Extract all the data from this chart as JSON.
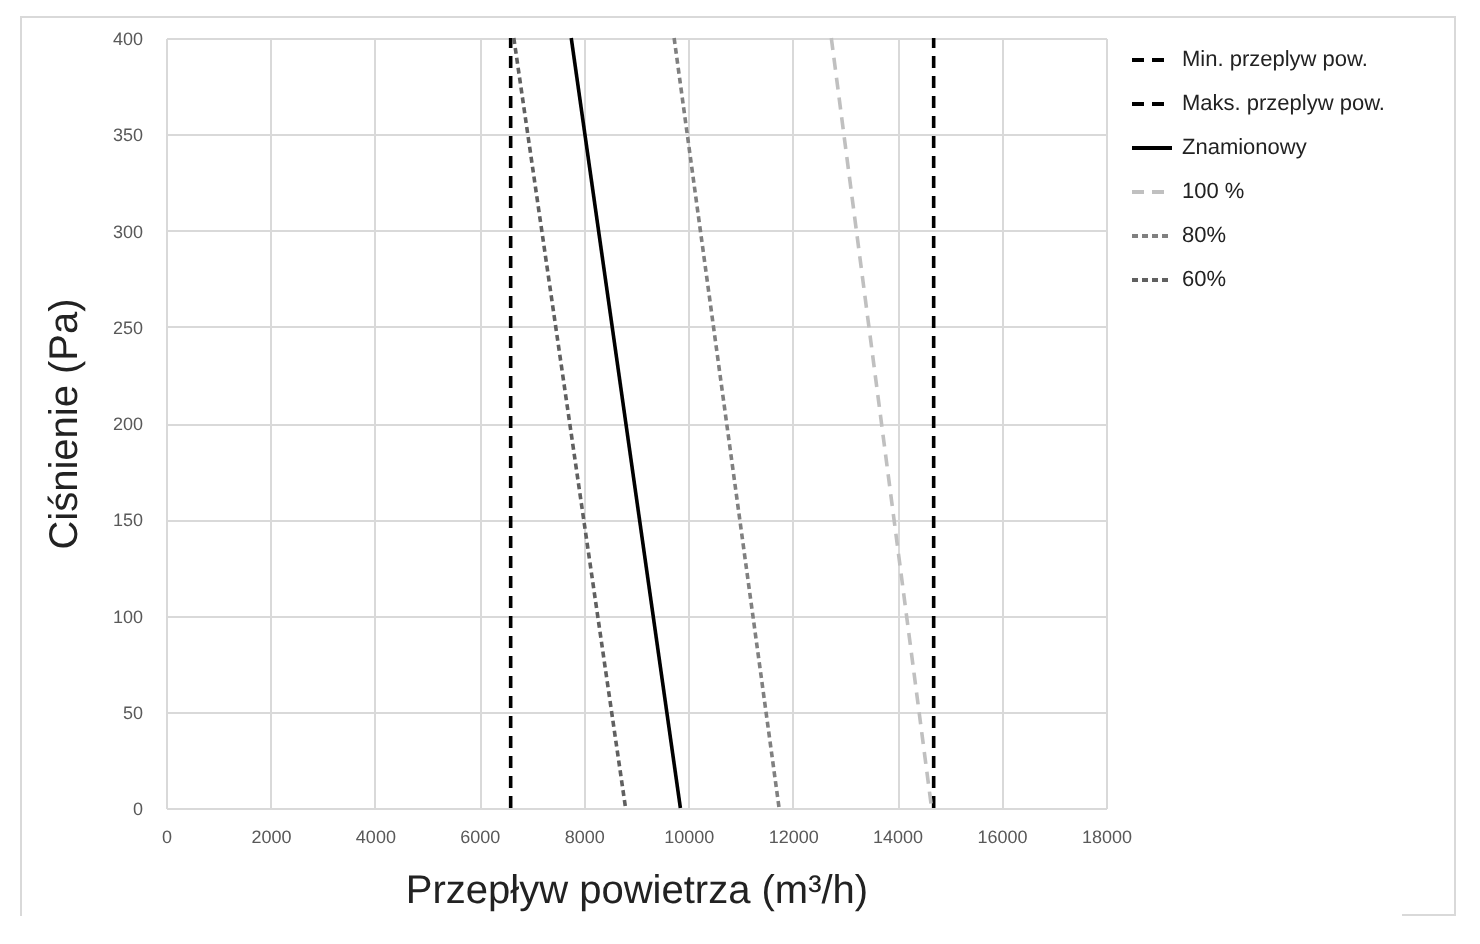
{
  "chart_data": {
    "type": "line",
    "xlabel": "Przepływ powietrza (m³/h)",
    "ylabel": "Ciśnienie (Pa)",
    "xlim": [
      0,
      18000
    ],
    "xticks": [
      0,
      2000,
      4000,
      6000,
      8000,
      10000,
      12000,
      14000,
      16000,
      18000
    ],
    "ylim": [
      0,
      400
    ],
    "yticks": [
      0,
      50,
      100,
      150,
      200,
      250,
      300,
      350,
      400
    ],
    "grid": true,
    "legend": "top right",
    "marker": "none",
    "series": [
      {
        "name": "Min. przeplyw pow.",
        "color": "#000000",
        "line_style": "dashed",
        "x": [
          6600,
          6600
        ],
        "values": [
          0,
          400
        ]
      },
      {
        "name": "Maks. przeplyw pow.",
        "color": "#000000",
        "line_style": "dashed",
        "x": [
          14700,
          14700
        ],
        "values": [
          0,
          400
        ]
      },
      {
        "name": "Znamionowy",
        "color": "#000000",
        "line_style": "solid",
        "x": [
          7760,
          9850
        ],
        "values": [
          400,
          0
        ]
      },
      {
        "name": "100 %",
        "color": "#c0c0c0",
        "line_style": "dashed",
        "x": [
          12740,
          14660
        ],
        "values": [
          400,
          0
        ]
      },
      {
        "name": "80%",
        "color": "#808080",
        "line_style": "dotted",
        "x": [
          9730,
          11740
        ],
        "values": [
          400,
          0
        ]
      },
      {
        "name": "60%",
        "color": "#606060",
        "line_style": "dotted",
        "x": [
          6660,
          8800
        ],
        "values": [
          400,
          0
        ]
      }
    ]
  }
}
